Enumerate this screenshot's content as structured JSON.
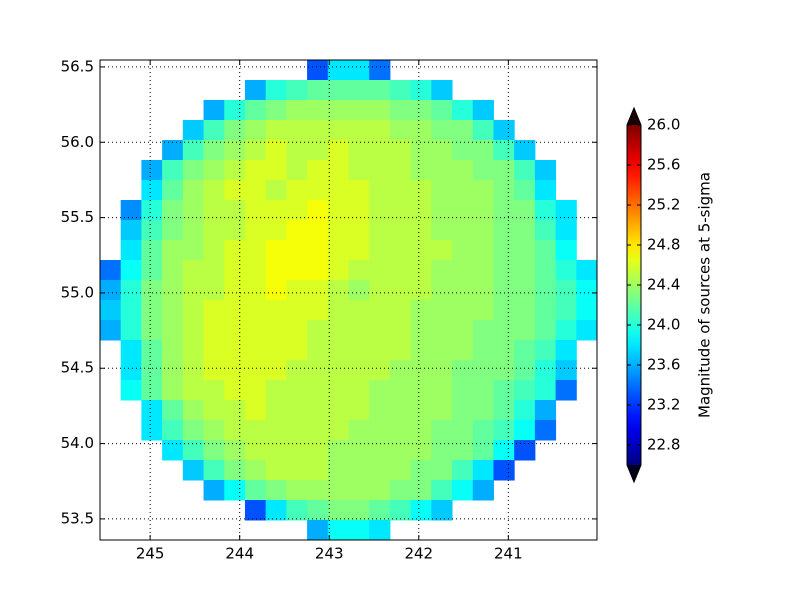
{
  "chart_data": {
    "type": "heatmap",
    "colormap": "jet",
    "grid": true,
    "xlim": [
      245.56,
      240.01
    ],
    "ylim": [
      53.36,
      56.546
    ],
    "xticks": [
      245,
      244,
      243,
      242,
      241
    ],
    "yticks": [
      {
        "value": 53.5,
        "label": "53.5"
      },
      {
        "value": 54,
        "label": "54.0"
      },
      54.5,
      {
        "value": 55,
        "label": "55.0"
      },
      55.5,
      {
        "value": 56,
        "label": "56.0"
      },
      56.5
    ],
    "clim": [
      22.6,
      26.0
    ],
    "cticks": [
      22.8,
      23.2,
      23.6,
      {
        "value": 24,
        "label": "24.0"
      },
      24.4,
      24.8,
      25.2,
      25.6,
      {
        "value": 26,
        "label": "26.0"
      }
    ],
    "colorbar_label": "Magnitude of sources at 5-sigma",
    "z": [
      [
        null,
        null,
        null,
        null,
        null,
        null,
        null,
        null,
        null,
        null,
        23.3,
        23.8,
        23.8,
        23.4,
        null,
        null,
        null,
        null,
        null,
        null,
        null,
        null,
        null,
        null
      ],
      [
        null,
        null,
        null,
        null,
        null,
        null,
        null,
        23.6,
        24.0,
        24.1,
        24.2,
        24.2,
        24.2,
        24.2,
        24.1,
        24.0,
        23.7,
        null,
        null,
        null,
        null,
        null,
        null,
        null
      ],
      [
        null,
        null,
        null,
        null,
        null,
        23.6,
        24.0,
        24.2,
        24.3,
        24.4,
        24.4,
        24.4,
        24.4,
        24.4,
        24.3,
        24.3,
        24.2,
        24.0,
        23.7,
        null,
        null,
        null,
        null,
        null
      ],
      [
        null,
        null,
        null,
        null,
        23.7,
        24.1,
        24.3,
        24.4,
        24.5,
        24.5,
        24.5,
        24.5,
        24.5,
        24.5,
        24.4,
        24.4,
        24.3,
        24.3,
        24.1,
        23.7,
        null,
        null,
        null,
        null
      ],
      [
        null,
        null,
        null,
        23.6,
        24.1,
        24.3,
        24.4,
        24.5,
        24.6,
        24.5,
        24.5,
        24.6,
        24.5,
        24.5,
        24.5,
        24.4,
        24.4,
        24.3,
        24.3,
        24.1,
        23.7,
        null,
        null,
        null
      ],
      [
        null,
        null,
        23.6,
        24.1,
        24.3,
        24.4,
        24.5,
        24.6,
        24.6,
        24.5,
        24.6,
        24.6,
        24.5,
        24.5,
        24.5,
        24.4,
        24.4,
        24.4,
        24.3,
        24.3,
        24.1,
        23.7,
        null,
        null
      ],
      [
        null,
        null,
        23.8,
        24.2,
        24.4,
        24.5,
        24.6,
        24.6,
        24.5,
        24.6,
        24.6,
        24.6,
        24.6,
        24.5,
        24.5,
        24.5,
        24.4,
        24.4,
        24.4,
        24.3,
        24.2,
        23.8,
        null,
        null
      ],
      [
        null,
        23.5,
        24.0,
        24.3,
        24.4,
        24.5,
        24.5,
        24.6,
        24.6,
        24.6,
        24.7,
        24.6,
        24.6,
        24.5,
        24.5,
        24.5,
        24.4,
        24.4,
        24.4,
        24.3,
        24.3,
        24.0,
        23.8,
        null
      ],
      [
        null,
        23.7,
        24.1,
        24.3,
        24.4,
        24.5,
        24.5,
        24.6,
        24.6,
        24.7,
        24.7,
        24.6,
        24.6,
        24.5,
        24.5,
        24.5,
        24.4,
        24.4,
        24.4,
        24.3,
        24.3,
        24.1,
        23.8,
        null
      ],
      [
        null,
        23.8,
        24.2,
        24.4,
        24.4,
        24.5,
        24.6,
        24.6,
        24.7,
        24.7,
        24.7,
        24.6,
        24.6,
        24.5,
        24.5,
        24.5,
        24.5,
        24.4,
        24.4,
        24.3,
        24.3,
        24.2,
        23.9,
        null
      ],
      [
        23.4,
        23.9,
        24.2,
        24.4,
        24.5,
        24.5,
        24.6,
        24.6,
        24.7,
        24.7,
        24.7,
        24.6,
        24.5,
        24.5,
        24.5,
        24.5,
        24.4,
        24.4,
        24.4,
        24.3,
        24.3,
        24.2,
        24.0,
        23.8
      ],
      [
        23.6,
        24.0,
        24.3,
        24.4,
        24.5,
        24.5,
        24.6,
        24.6,
        24.7,
        24.6,
        24.6,
        24.5,
        24.4,
        24.5,
        24.5,
        24.5,
        24.4,
        24.4,
        24.4,
        24.3,
        24.3,
        24.2,
        24.1,
        23.9
      ],
      [
        23.7,
        24.0,
        24.3,
        24.4,
        24.5,
        24.6,
        24.6,
        24.6,
        24.6,
        24.6,
        24.6,
        24.5,
        24.5,
        24.5,
        24.5,
        24.4,
        24.4,
        24.4,
        24.4,
        24.3,
        24.3,
        24.2,
        24.1,
        23.9
      ],
      [
        23.6,
        24.0,
        24.3,
        24.4,
        24.5,
        24.6,
        24.6,
        24.6,
        24.6,
        24.6,
        24.5,
        24.5,
        24.5,
        24.5,
        24.5,
        24.4,
        24.4,
        24.4,
        24.3,
        24.3,
        24.3,
        24.2,
        24.0,
        23.8
      ],
      [
        null,
        23.8,
        24.2,
        24.4,
        24.5,
        24.6,
        24.6,
        24.6,
        24.6,
        24.6,
        24.5,
        24.5,
        24.5,
        24.5,
        24.5,
        24.4,
        24.4,
        24.4,
        24.3,
        24.3,
        24.2,
        24.1,
        23.8,
        null
      ],
      [
        null,
        23.8,
        24.2,
        24.4,
        24.5,
        24.6,
        24.6,
        24.6,
        24.6,
        24.5,
        24.5,
        24.5,
        24.5,
        24.5,
        24.4,
        24.4,
        24.4,
        24.3,
        24.3,
        24.3,
        24.2,
        24.0,
        23.7,
        null
      ],
      [
        null,
        23.9,
        24.2,
        24.4,
        24.5,
        24.5,
        24.6,
        24.6,
        24.5,
        24.5,
        24.5,
        24.5,
        24.5,
        24.4,
        24.4,
        24.4,
        24.4,
        24.3,
        24.3,
        24.2,
        24.1,
        24.0,
        23.4,
        null
      ],
      [
        null,
        null,
        23.8,
        24.2,
        24.4,
        24.5,
        24.5,
        24.6,
        24.5,
        24.5,
        24.5,
        24.5,
        24.5,
        24.4,
        24.4,
        24.4,
        24.4,
        24.3,
        24.3,
        24.2,
        24.0,
        23.6,
        null,
        null
      ],
      [
        null,
        null,
        23.8,
        24.1,
        24.3,
        24.4,
        24.5,
        24.5,
        24.5,
        24.5,
        24.5,
        24.5,
        24.4,
        24.4,
        24.4,
        24.4,
        24.3,
        24.3,
        24.2,
        24.1,
        23.9,
        23.4,
        null,
        null
      ],
      [
        null,
        null,
        null,
        23.8,
        24.1,
        24.3,
        24.4,
        24.5,
        24.5,
        24.5,
        24.5,
        24.4,
        24.4,
        24.4,
        24.4,
        24.4,
        24.3,
        24.3,
        24.2,
        23.9,
        23.3,
        null,
        null,
        null
      ],
      [
        null,
        null,
        null,
        null,
        23.7,
        24.1,
        24.3,
        24.4,
        24.5,
        24.5,
        24.5,
        24.4,
        24.4,
        24.4,
        24.4,
        24.3,
        24.3,
        24.1,
        23.8,
        23.3,
        null,
        null,
        null,
        null
      ],
      [
        null,
        null,
        null,
        null,
        null,
        23.6,
        23.9,
        24.2,
        24.3,
        24.4,
        24.4,
        24.4,
        24.4,
        24.4,
        24.3,
        24.3,
        24.1,
        23.9,
        23.6,
        null,
        null,
        null,
        null,
        null
      ],
      [
        null,
        null,
        null,
        null,
        null,
        null,
        null,
        23.3,
        23.8,
        24.1,
        24.2,
        24.3,
        24.3,
        24.2,
        24.1,
        23.9,
        23.7,
        null,
        null,
        null,
        null,
        null,
        null,
        null
      ],
      [
        null,
        null,
        null,
        null,
        null,
        null,
        null,
        null,
        null,
        null,
        23.6,
        23.9,
        23.9,
        23.8,
        null,
        null,
        null,
        null,
        null,
        null,
        null,
        null,
        null,
        null
      ]
    ]
  }
}
